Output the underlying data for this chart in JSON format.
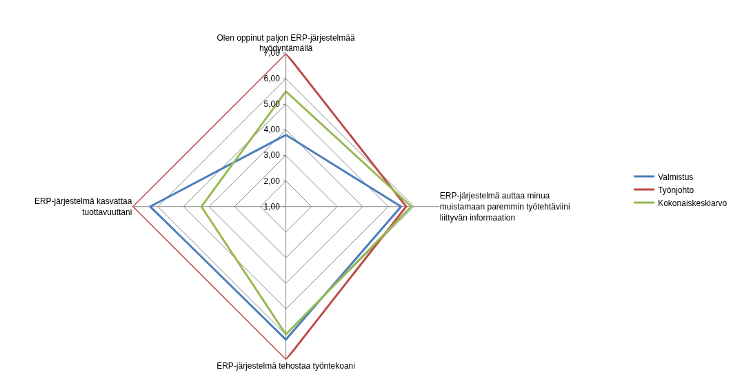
{
  "chart_data": {
    "type": "radar",
    "categories": [
      "Olen oppinut paljon ERP-järjestelmää hyödyntämällä",
      "ERP-järjestelmä auttaa minua muistamaan paremmin työtehtäviini liittyvän informaation",
      "ERP-järjestelmä tehostaa työntekoani",
      "ERP-järjestelmä kasvattaa tuottavuuttani"
    ],
    "series": [
      {
        "name": "Valmistus",
        "color": "#4a7ebb",
        "values": [
          3.8,
          5.5,
          6.2,
          6.3
        ]
      },
      {
        "name": "Työnjohto",
        "color": "#be4b48",
        "values": [
          7,
          5.7,
          7,
          7
        ]
      },
      {
        "name": "Kokonaiskeskiarvo",
        "color": "#98b954",
        "values": [
          5.5,
          5.9,
          6.0,
          4.3
        ]
      }
    ],
    "ylim": [
      1,
      7
    ],
    "yticks": [
      {
        "value": 1,
        "label": "1,00"
      },
      {
        "value": 2,
        "label": "2,00"
      },
      {
        "value": 3,
        "label": "3,00"
      },
      {
        "value": 4,
        "label": "4,00"
      },
      {
        "value": 5,
        "label": "5,00"
      },
      {
        "value": 6,
        "label": "6,00"
      },
      {
        "value": 7,
        "label": "7,00"
      }
    ],
    "grid": true,
    "legend": "right",
    "marker": "none",
    "line_style": "solid"
  }
}
